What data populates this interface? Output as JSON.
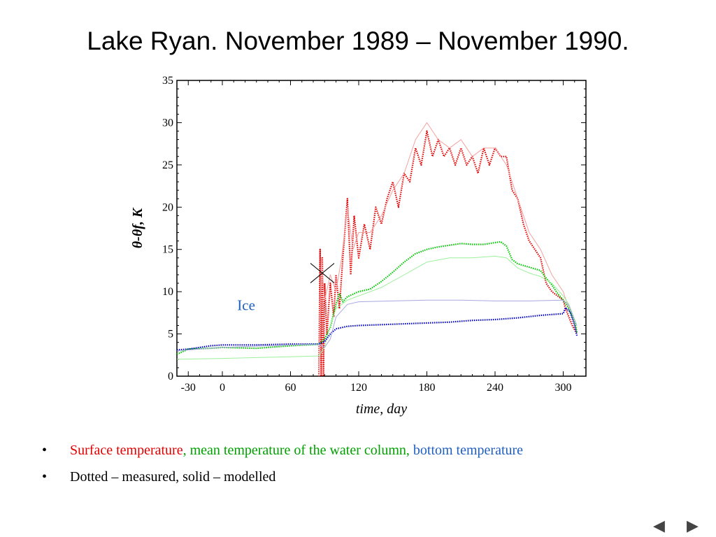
{
  "slide": {
    "title": "Lake Ryan. November 1989 – November 1990."
  },
  "chart_data": {
    "type": "line",
    "xlabel": "time, day",
    "ylabel": "θ-θf, K",
    "xlim": [
      -40,
      320
    ],
    "ylim": [
      0,
      35
    ],
    "xticks": [
      -30,
      0,
      60,
      120,
      180,
      240,
      300
    ],
    "yticks": [
      0,
      5,
      10,
      15,
      20,
      25,
      30,
      35
    ],
    "annotations": [
      {
        "text": "Ice",
        "x": 21,
        "y": 7.8,
        "color": "#1f5fbf"
      }
    ],
    "marker": {
      "symbol": "x",
      "x": 88,
      "y": 12.2
    },
    "series": [
      {
        "name": "Surface temperature, measured",
        "style": "dotted",
        "color": "#e00000",
        "points": [
          [
            85,
            0
          ],
          [
            86,
            15
          ],
          [
            87,
            0
          ],
          [
            88,
            14
          ],
          [
            89,
            0
          ],
          [
            90,
            11
          ],
          [
            92,
            5
          ],
          [
            95,
            11
          ],
          [
            98,
            7
          ],
          [
            100,
            12
          ],
          [
            103,
            8
          ],
          [
            106,
            14
          ],
          [
            110,
            21
          ],
          [
            113,
            12
          ],
          [
            116,
            19
          ],
          [
            120,
            14
          ],
          [
            125,
            18
          ],
          [
            130,
            15
          ],
          [
            135,
            20
          ],
          [
            140,
            18
          ],
          [
            145,
            21
          ],
          [
            150,
            23
          ],
          [
            155,
            20
          ],
          [
            160,
            24
          ],
          [
            165,
            23
          ],
          [
            170,
            27
          ],
          [
            175,
            25
          ],
          [
            180,
            29
          ],
          [
            185,
            26
          ],
          [
            190,
            28
          ],
          [
            195,
            26
          ],
          [
            200,
            27
          ],
          [
            205,
            25
          ],
          [
            210,
            27
          ],
          [
            215,
            25
          ],
          [
            220,
            26
          ],
          [
            225,
            24
          ],
          [
            230,
            27
          ],
          [
            235,
            25
          ],
          [
            240,
            27
          ],
          [
            245,
            26
          ],
          [
            250,
            26
          ],
          [
            255,
            22
          ],
          [
            260,
            21
          ],
          [
            265,
            18
          ],
          [
            270,
            16
          ],
          [
            275,
            15
          ],
          [
            280,
            14
          ],
          [
            285,
            11
          ],
          [
            290,
            10
          ],
          [
            295,
            9.5
          ],
          [
            300,
            9
          ],
          [
            302,
            8
          ],
          [
            305,
            7
          ],
          [
            308,
            6
          ],
          [
            312,
            5
          ]
        ]
      },
      {
        "name": "Surface temperature, modelled",
        "style": "solid",
        "color": "#f4a0a0",
        "points": [
          [
            85,
            0
          ],
          [
            87,
            14
          ],
          [
            90,
            9
          ],
          [
            95,
            12
          ],
          [
            100,
            10
          ],
          [
            105,
            14
          ],
          [
            110,
            20
          ],
          [
            115,
            15
          ],
          [
            120,
            17
          ],
          [
            130,
            17
          ],
          [
            140,
            19
          ],
          [
            150,
            22
          ],
          [
            160,
            24
          ],
          [
            170,
            28
          ],
          [
            180,
            30
          ],
          [
            190,
            28
          ],
          [
            200,
            27
          ],
          [
            210,
            28
          ],
          [
            220,
            26
          ],
          [
            230,
            27
          ],
          [
            240,
            27
          ],
          [
            250,
            25
          ],
          [
            260,
            21
          ],
          [
            270,
            17
          ],
          [
            280,
            15
          ],
          [
            290,
            12
          ],
          [
            300,
            10
          ],
          [
            305,
            8
          ],
          [
            312,
            5.5
          ]
        ]
      },
      {
        "name": "Mean temperature of the water column, measured",
        "style": "dotted",
        "color": "#00c800",
        "points": [
          [
            -40,
            2.6
          ],
          [
            -30,
            3.2
          ],
          [
            -10,
            3.3
          ],
          [
            0,
            3.4
          ],
          [
            30,
            3.3
          ],
          [
            60,
            3.6
          ],
          [
            85,
            3.8
          ],
          [
            90,
            4.4
          ],
          [
            95,
            5.8
          ],
          [
            100,
            8.5
          ],
          [
            103,
            9.8
          ],
          [
            106,
            8.8
          ],
          [
            110,
            9.4
          ],
          [
            120,
            10.0
          ],
          [
            130,
            10.3
          ],
          [
            140,
            11.2
          ],
          [
            150,
            12.3
          ],
          [
            160,
            13.5
          ],
          [
            170,
            14.5
          ],
          [
            180,
            15.0
          ],
          [
            190,
            15.3
          ],
          [
            200,
            15.5
          ],
          [
            210,
            15.7
          ],
          [
            220,
            15.6
          ],
          [
            230,
            15.6
          ],
          [
            240,
            15.8
          ],
          [
            245,
            15.9
          ],
          [
            250,
            15.4
          ],
          [
            255,
            13.8
          ],
          [
            260,
            13.3
          ],
          [
            270,
            12.9
          ],
          [
            280,
            12.5
          ],
          [
            285,
            11.6
          ],
          [
            290,
            10.8
          ],
          [
            295,
            9.8
          ],
          [
            300,
            9.0
          ],
          [
            305,
            8.0
          ],
          [
            310,
            6.5
          ],
          [
            312,
            5.2
          ]
        ]
      },
      {
        "name": "Mean temperature of the water column, modelled",
        "style": "solid",
        "color": "#9cf09c",
        "points": [
          [
            -40,
            2.0
          ],
          [
            0,
            2.1
          ],
          [
            60,
            2.3
          ],
          [
            85,
            2.4
          ],
          [
            90,
            3.5
          ],
          [
            95,
            6.0
          ],
          [
            100,
            8.0
          ],
          [
            110,
            9.0
          ],
          [
            120,
            9.5
          ],
          [
            140,
            10.5
          ],
          [
            160,
            12.0
          ],
          [
            180,
            13.5
          ],
          [
            200,
            14.0
          ],
          [
            220,
            14.0
          ],
          [
            240,
            14.2
          ],
          [
            250,
            14.0
          ],
          [
            260,
            12.8
          ],
          [
            270,
            12.2
          ],
          [
            280,
            11.8
          ],
          [
            290,
            11.0
          ],
          [
            300,
            9.5
          ],
          [
            305,
            8.5
          ],
          [
            312,
            6.0
          ]
        ]
      },
      {
        "name": "Bottom temperature, measured",
        "style": "dotted",
        "color": "#0000d0",
        "points": [
          [
            -40,
            3.1
          ],
          [
            -30,
            3.2
          ],
          [
            -10,
            3.6
          ],
          [
            0,
            3.7
          ],
          [
            30,
            3.7
          ],
          [
            60,
            3.8
          ],
          [
            85,
            3.8
          ],
          [
            90,
            4.1
          ],
          [
            95,
            5.0
          ],
          [
            100,
            5.6
          ],
          [
            110,
            5.9
          ],
          [
            120,
            6.0
          ],
          [
            140,
            6.1
          ],
          [
            160,
            6.2
          ],
          [
            180,
            6.3
          ],
          [
            200,
            6.4
          ],
          [
            220,
            6.6
          ],
          [
            240,
            6.7
          ],
          [
            260,
            6.9
          ],
          [
            280,
            7.2
          ],
          [
            300,
            7.4
          ],
          [
            302,
            8.1
          ],
          [
            306,
            7.6
          ],
          [
            310,
            6.0
          ],
          [
            312,
            4.8
          ]
        ]
      },
      {
        "name": "Bottom temperature, modelled",
        "style": "solid",
        "color": "#a8a8e0",
        "points": [
          [
            -40,
            3.0
          ],
          [
            0,
            3.4
          ],
          [
            60,
            3.7
          ],
          [
            85,
            3.8
          ],
          [
            90,
            3.4
          ],
          [
            95,
            4.4
          ],
          [
            100,
            7.0
          ],
          [
            110,
            8.5
          ],
          [
            120,
            8.8
          ],
          [
            150,
            8.9
          ],
          [
            180,
            9.0
          ],
          [
            210,
            9.0
          ],
          [
            240,
            8.9
          ],
          [
            270,
            8.9
          ],
          [
            300,
            9.0
          ],
          [
            305,
            8.4
          ],
          [
            312,
            6.0
          ]
        ]
      }
    ]
  },
  "legend": {
    "bullet1": {
      "surface": "Surface temperature",
      "comma1": ",",
      "mean": " mean temperature of the water column,",
      "bottom": " bottom temperature"
    },
    "bullet2": "Dotted – measured,  solid – modelled",
    "bullet_glyph": "•"
  },
  "colors": {
    "surface": "#e00000",
    "mean": "#00a000",
    "bottom": "#1f5fbf"
  },
  "nav": {
    "prev": "◀",
    "next": "▶"
  }
}
